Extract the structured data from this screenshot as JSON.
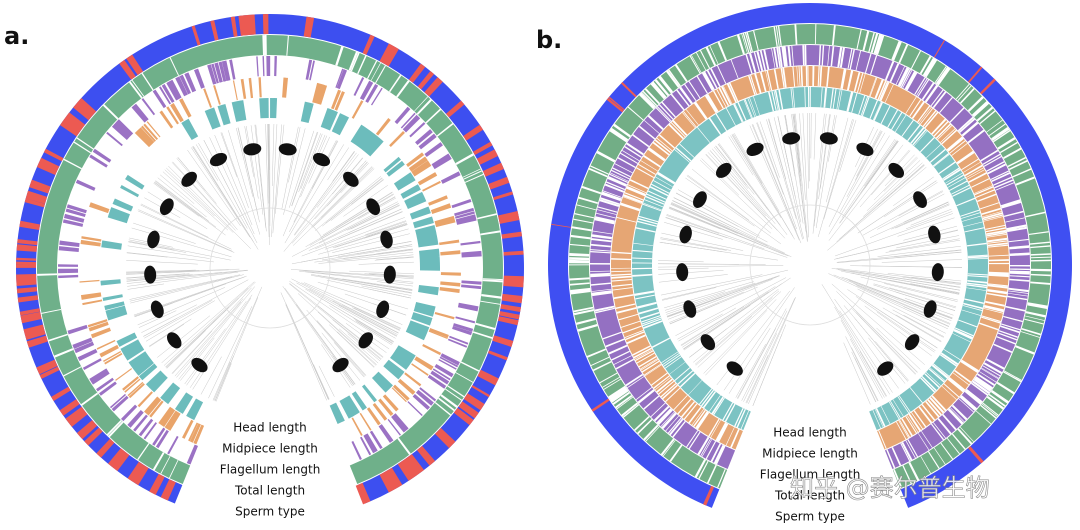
{
  "panels": [
    {
      "label": "a.",
      "ring_labels": [
        "Head length",
        "Midpiece length",
        "Flagellum length",
        "Total length",
        "Sperm type"
      ]
    },
    {
      "label": "b.",
      "ring_labels": [
        "Head length",
        "Midpiece length",
        "Flagellum length",
        "Total length",
        "Sperm type"
      ]
    }
  ],
  "watermark": "知乎 @赛尔普生物"
}
